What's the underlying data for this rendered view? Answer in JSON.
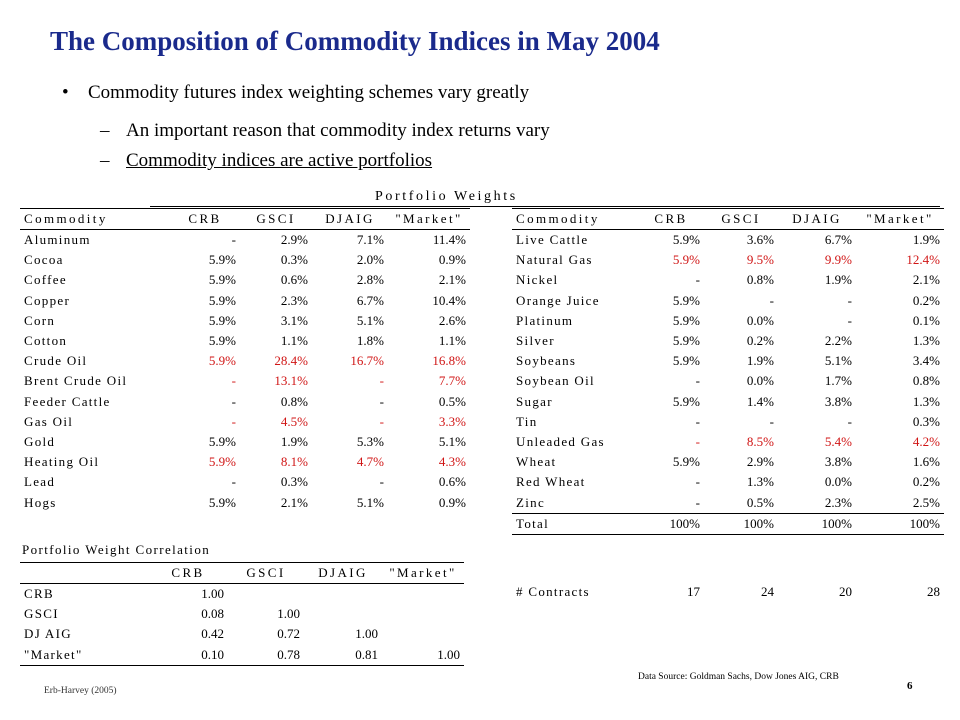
{
  "title": "The Composition of Commodity Indices in May 2004",
  "bullets": {
    "b1": "Commodity futures index weighting schemes vary greatly",
    "b2": "An important reason that commodity index returns vary",
    "b3": "Commodity indices are active portfolios"
  },
  "marks": {
    "dot": "•",
    "dash": "–"
  },
  "portfolio_weights_title": "Portfolio Weights",
  "headers": {
    "commodity": "Commodity",
    "crb": "CRB",
    "gsci": "GSCI",
    "djaig": "DJAIG",
    "market": "\"Market\""
  },
  "left_rows": [
    {
      "name": "Aluminum",
      "crb": "-",
      "gsci": "2.9%",
      "djaig": "7.1%",
      "market": "11.4%",
      "highlight": false
    },
    {
      "name": "Cocoa",
      "crb": "5.9%",
      "gsci": "0.3%",
      "djaig": "2.0%",
      "market": "0.9%",
      "highlight": false
    },
    {
      "name": "Coffee",
      "crb": "5.9%",
      "gsci": "0.6%",
      "djaig": "2.8%",
      "market": "2.1%",
      "highlight": false
    },
    {
      "name": "Copper",
      "crb": "5.9%",
      "gsci": "2.3%",
      "djaig": "6.7%",
      "market": "10.4%",
      "highlight": false
    },
    {
      "name": "Corn",
      "crb": "5.9%",
      "gsci": "3.1%",
      "djaig": "5.1%",
      "market": "2.6%",
      "highlight": false
    },
    {
      "name": "Cotton",
      "crb": "5.9%",
      "gsci": "1.1%",
      "djaig": "1.8%",
      "market": "1.1%",
      "highlight": false
    },
    {
      "name": "Crude Oil",
      "crb": "5.9%",
      "gsci": "28.4%",
      "djaig": "16.7%",
      "market": "16.8%",
      "highlight": true
    },
    {
      "name": "Brent Crude Oil",
      "crb": "-",
      "gsci": "13.1%",
      "djaig": "-",
      "market": "7.7%",
      "highlight": true
    },
    {
      "name": "Feeder Cattle",
      "crb": "-",
      "gsci": "0.8%",
      "djaig": "-",
      "market": "0.5%",
      "highlight": false
    },
    {
      "name": "Gas Oil",
      "crb": "-",
      "gsci": "4.5%",
      "djaig": "-",
      "market": "3.3%",
      "highlight": true
    },
    {
      "name": "Gold",
      "crb": "5.9%",
      "gsci": "1.9%",
      "djaig": "5.3%",
      "market": "5.1%",
      "highlight": false
    },
    {
      "name": "Heating Oil",
      "crb": "5.9%",
      "gsci": "8.1%",
      "djaig": "4.7%",
      "market": "4.3%",
      "highlight": true
    },
    {
      "name": "Lead",
      "crb": "-",
      "gsci": "0.3%",
      "djaig": "-",
      "market": "0.6%",
      "highlight": false
    },
    {
      "name": "Hogs",
      "crb": "5.9%",
      "gsci": "2.1%",
      "djaig": "5.1%",
      "market": "0.9%",
      "highlight": false
    }
  ],
  "right_rows": [
    {
      "name": "Live Cattle",
      "crb": "5.9%",
      "gsci": "3.6%",
      "djaig": "6.7%",
      "market": "1.9%",
      "highlight": false
    },
    {
      "name": "Natural Gas",
      "crb": "5.9%",
      "gsci": "9.5%",
      "djaig": "9.9%",
      "market": "12.4%",
      "highlight": true
    },
    {
      "name": "Nickel",
      "crb": "-",
      "gsci": "0.8%",
      "djaig": "1.9%",
      "market": "2.1%",
      "highlight": false
    },
    {
      "name": "Orange Juice",
      "crb": "5.9%",
      "gsci": "-",
      "djaig": "-",
      "market": "0.2%",
      "highlight": false
    },
    {
      "name": "Platinum",
      "crb": "5.9%",
      "gsci": "0.0%",
      "djaig": "-",
      "market": "0.1%",
      "highlight": false
    },
    {
      "name": "Silver",
      "crb": "5.9%",
      "gsci": "0.2%",
      "djaig": "2.2%",
      "market": "1.3%",
      "highlight": false
    },
    {
      "name": "Soybeans",
      "crb": "5.9%",
      "gsci": "1.9%",
      "djaig": "5.1%",
      "market": "3.4%",
      "highlight": false
    },
    {
      "name": "Soybean Oil",
      "crb": "-",
      "gsci": "0.0%",
      "djaig": "1.7%",
      "market": "0.8%",
      "highlight": false
    },
    {
      "name": "Sugar",
      "crb": "5.9%",
      "gsci": "1.4%",
      "djaig": "3.8%",
      "market": "1.3%",
      "highlight": false
    },
    {
      "name": "Tin",
      "crb": "-",
      "gsci": "-",
      "djaig": "-",
      "market": "0.3%",
      "highlight": false
    },
    {
      "name": "Unleaded Gas",
      "crb": "-",
      "gsci": "8.5%",
      "djaig": "5.4%",
      "market": "4.2%",
      "highlight": true
    },
    {
      "name": "Wheat",
      "crb": "5.9%",
      "gsci": "2.9%",
      "djaig": "3.8%",
      "market": "1.6%",
      "highlight": false
    },
    {
      "name": "Red Wheat",
      "crb": "-",
      "gsci": "1.3%",
      "djaig": "0.0%",
      "market": "0.2%",
      "highlight": false
    },
    {
      "name": "Zinc",
      "crb": "-",
      "gsci": "0.5%",
      "djaig": "2.3%",
      "market": "2.5%",
      "highlight": false
    }
  ],
  "total": {
    "name": "Total",
    "crb": "100%",
    "gsci": "100%",
    "djaig": "100%",
    "market": "100%"
  },
  "contracts": {
    "name": "# Contracts",
    "crb": "17",
    "gsci": "24",
    "djaig": "20",
    "market": "28"
  },
  "correlation": {
    "title": "Portfolio Weight Correlation",
    "rows": [
      {
        "name": "CRB",
        "crb": "1.00",
        "gsci": "",
        "djaig": "",
        "market": ""
      },
      {
        "name": "GSCI",
        "crb": "0.08",
        "gsci": "1.00",
        "djaig": "",
        "market": ""
      },
      {
        "name": "DJ AIG",
        "crb": "0.42",
        "gsci": "0.72",
        "djaig": "1.00",
        "market": ""
      },
      {
        "name": "\"Market\"",
        "crb": "0.10",
        "gsci": "0.78",
        "djaig": "0.81",
        "market": "1.00"
      }
    ]
  },
  "footer": {
    "author": "Erb-Harvey (2005)",
    "source": "Data Source: Goldman Sachs, Dow Jones AIG, CRB",
    "page": "6"
  }
}
